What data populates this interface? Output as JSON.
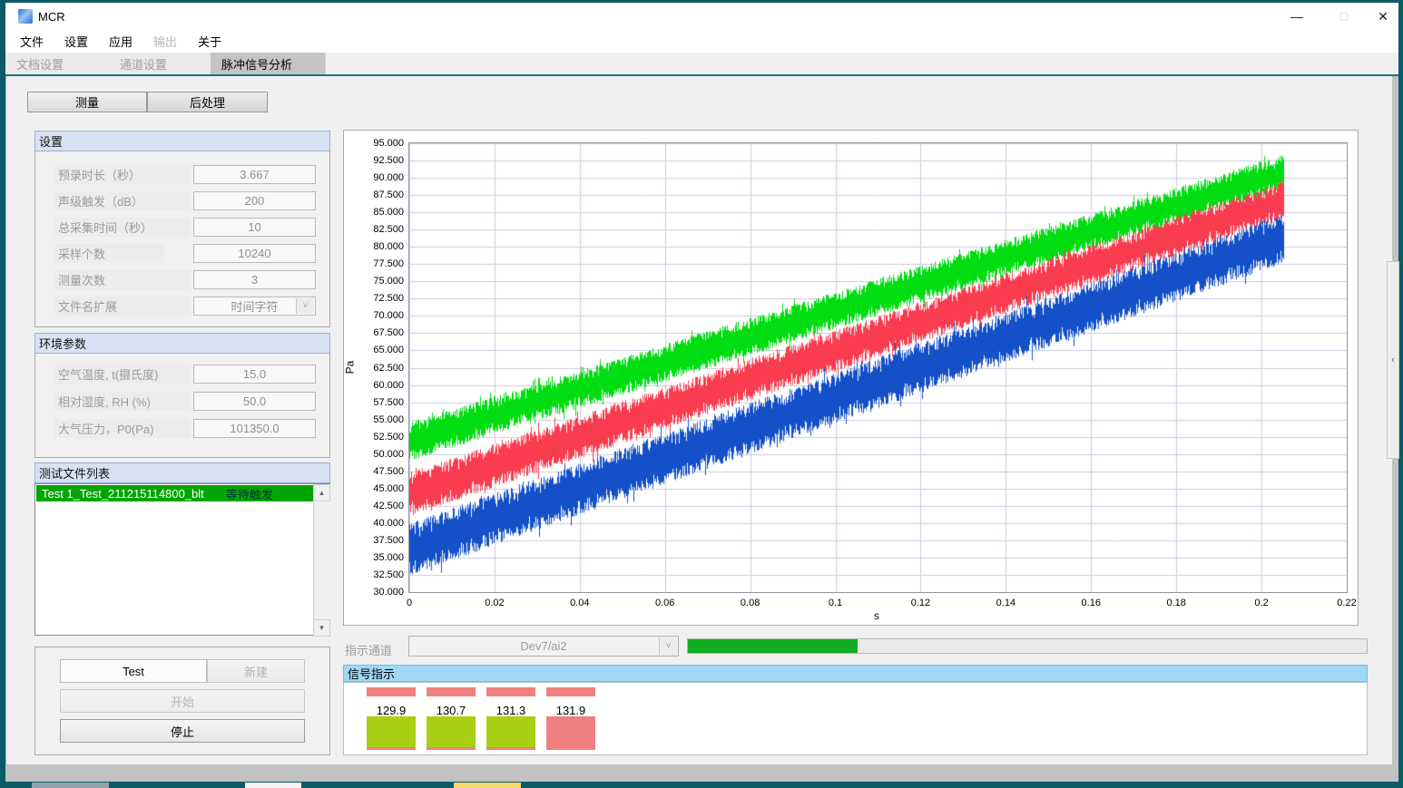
{
  "window": {
    "title": "MCR"
  },
  "icons": {
    "minimize": "—",
    "maximize": "□",
    "close": "✕",
    "dropdown_chevron": "˅",
    "scroll_up": "▲",
    "scroll_down": "▼",
    "splitter_chevron": "‹"
  },
  "menu": {
    "items": [
      {
        "label": "文件",
        "enabled": true
      },
      {
        "label": "设置",
        "enabled": true
      },
      {
        "label": "应用",
        "enabled": true
      },
      {
        "label": "输出",
        "enabled": false
      },
      {
        "label": "关于",
        "enabled": true
      }
    ]
  },
  "tabs": [
    {
      "label": "文档设置",
      "active": false
    },
    {
      "label": "通道设置",
      "active": false
    },
    {
      "label": "脉冲信号分析",
      "active": true
    }
  ],
  "toolbar": {
    "measure_label": "测量",
    "postprocess_label": "后处理"
  },
  "settings_panel": {
    "title": "设置",
    "fields": [
      {
        "label": "预录时长（秒）",
        "value": "3.667"
      },
      {
        "label": "声级触发（dB）",
        "value": "200"
      },
      {
        "label": "总采集时间（秒）",
        "value": "10"
      },
      {
        "label": "采样个数",
        "value": "10240"
      },
      {
        "label": "测量次数",
        "value": "3"
      },
      {
        "label": "文件名扩展",
        "value": "时间字符",
        "type": "dropdown"
      }
    ]
  },
  "env_panel": {
    "title": "环境参数",
    "fields": [
      {
        "label": "空气温度, t(摄氏度)",
        "value": "15.0"
      },
      {
        "label": "相对湿度, RH (%)",
        "value": "50.0"
      },
      {
        "label": "大气压力，P0(Pa)",
        "value": "101350.0"
      }
    ]
  },
  "file_list_panel": {
    "title": "测试文件列表",
    "items": [
      {
        "name": "Test 1_Test_211215114800_blt",
        "status": "等待触发",
        "highlight_color": "#00a600"
      }
    ]
  },
  "control_panel": {
    "test_label": "Test",
    "new_label": "新建",
    "start_label": "开始",
    "stop_label": "停止"
  },
  "indicator_row": {
    "label": "指示通道",
    "channel": "Dev7/ai2",
    "progress_percent": 25,
    "progress_color": "#12ad22"
  },
  "signal_panel": {
    "title": "信号指示",
    "indicators": [
      {
        "value": "129.9",
        "top_bar_color": "#f08080",
        "block_color": "#a9cf13",
        "block_underline": "#f08080"
      },
      {
        "value": "130.7",
        "top_bar_color": "#f08080",
        "block_color": "#a9cf13",
        "block_underline": "#f08080"
      },
      {
        "value": "131.3",
        "top_bar_color": "#f08080",
        "block_color": "#a9cf13",
        "block_underline": "#f08080"
      },
      {
        "value": "131.9",
        "top_bar_color": "#f08080",
        "block_color": "#f08080",
        "block_underline": ""
      }
    ]
  },
  "chart_data": {
    "type": "line",
    "title": "",
    "xlabel": "s",
    "ylabel": "Pa",
    "xlim": [
      0,
      0.22
    ],
    "ylim": [
      30,
      95
    ],
    "xtick_step": 0.02,
    "ytick_step": 2.5,
    "grid": true,
    "grid_color": "#ccccdf",
    "x_data_end": 0.205,
    "series": [
      {
        "name": "channel-1-green",
        "color": "#00dd11",
        "shape": "noisy rising band",
        "mean_start": 51.8,
        "mean_end": 90.8,
        "halfband_start": 2.8,
        "halfband_end": 2.6
      },
      {
        "name": "channel-2-red",
        "color": "#fa3c50",
        "shape": "noisy rising band",
        "mean_start": 44.2,
        "mean_end": 86.8,
        "halfband_start": 3.2,
        "halfband_end": 2.8
      },
      {
        "name": "channel-3-blue",
        "color": "#1450c8",
        "shape": "noisy rising band",
        "mean_start": 36.2,
        "mean_end": 81.2,
        "halfband_start": 3.8,
        "halfband_end": 3.6
      }
    ]
  }
}
